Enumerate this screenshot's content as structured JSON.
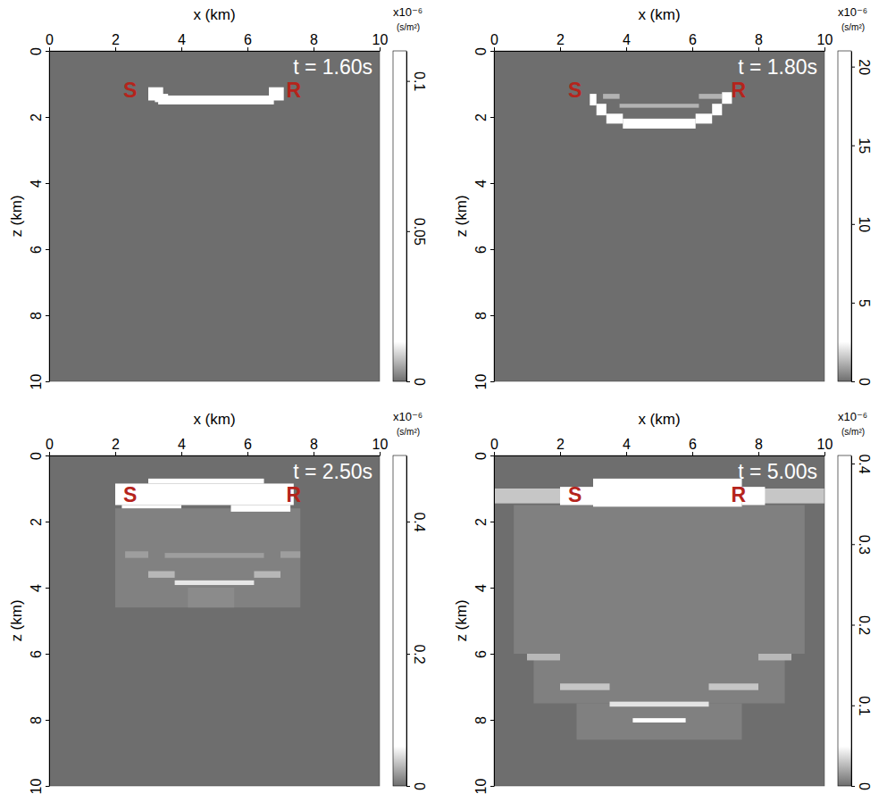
{
  "chart_data": [
    {
      "type": "heatmap",
      "title": "t = 1.60s",
      "x_label": "x (km)",
      "y_label": "z (km)",
      "xlim": [
        0,
        10
      ],
      "ylim": [
        0,
        10
      ],
      "xticks": [
        0,
        2,
        4,
        6,
        8,
        10
      ],
      "yticks": [
        0,
        2,
        4,
        6,
        8,
        10
      ],
      "annotations": [
        {
          "text": "S",
          "x": 2.45,
          "y": 1.2,
          "color": "#b5241c"
        },
        {
          "text": "R",
          "x": 7.4,
          "y": 1.2,
          "color": "#b5241c"
        }
      ],
      "cells": [
        [
          3.3,
          6.8,
          1.35,
          1.62,
          0.1
        ],
        [
          3.0,
          3.45,
          1.1,
          1.5,
          0.1
        ],
        [
          6.65,
          7.1,
          1.1,
          1.5,
          0.1
        ],
        [
          3.2,
          3.6,
          1.3,
          1.55,
          0.1
        ]
      ],
      "colorbar": {
        "range": [
          0,
          0.11
        ],
        "ticks": [
          0,
          0.05,
          0.1
        ],
        "label": "x10⁻⁶",
        "unit": "(s/m²)"
      }
    },
    {
      "type": "heatmap",
      "title": "t = 1.80s",
      "x_label": "x (km)",
      "y_label": "z (km)",
      "xlim": [
        0,
        10
      ],
      "ylim": [
        0,
        10
      ],
      "xticks": [
        0,
        2,
        4,
        6,
        8,
        10
      ],
      "yticks": [
        0,
        2,
        4,
        6,
        8,
        10
      ],
      "annotations": [
        {
          "text": "S",
          "x": 2.45,
          "y": 1.2,
          "color": "#b5241c"
        },
        {
          "text": "R",
          "x": 7.4,
          "y": 1.2,
          "color": "#b5241c"
        }
      ],
      "cells": [
        [
          3.3,
          3.8,
          1.3,
          1.45,
          1.2
        ],
        [
          3.8,
          6.2,
          1.6,
          1.72,
          1.2
        ],
        [
          6.2,
          6.9,
          1.3,
          1.45,
          1.2
        ],
        [
          3.9,
          6.1,
          2.05,
          2.35,
          20
        ],
        [
          3.4,
          3.9,
          1.9,
          2.2,
          20
        ],
        [
          6.1,
          6.6,
          1.9,
          2.2,
          20
        ],
        [
          3.1,
          3.4,
          1.6,
          1.95,
          20
        ],
        [
          6.6,
          6.9,
          1.6,
          1.95,
          20
        ],
        [
          2.9,
          3.1,
          1.3,
          1.65,
          20
        ],
        [
          6.9,
          7.2,
          1.25,
          1.6,
          20
        ]
      ],
      "colorbar": {
        "range": [
          0,
          21
        ],
        "ticks": [
          0,
          5,
          10,
          15,
          20
        ],
        "label": "x10⁻⁶",
        "unit": "(s/m²)"
      }
    },
    {
      "type": "heatmap",
      "title": "t = 2.50s",
      "x_label": "x (km)",
      "y_label": "z (km)",
      "xlim": [
        0,
        10
      ],
      "ylim": [
        0,
        10
      ],
      "xticks": [
        0,
        2,
        4,
        6,
        8,
        10
      ],
      "yticks": [
        0,
        2,
        4,
        6,
        8,
        10
      ],
      "annotations": [
        {
          "text": "S",
          "x": 2.45,
          "y": 1.2,
          "color": "#b5241c"
        },
        {
          "text": "R",
          "x": 7.4,
          "y": 1.2,
          "color": "#b5241c"
        }
      ],
      "cells": [
        [
          2.0,
          7.6,
          1.6,
          4.6,
          0.008
        ],
        [
          4.2,
          5.6,
          4.0,
          4.6,
          0.012
        ],
        [
          2.3,
          3.0,
          2.9,
          3.1,
          0.02
        ],
        [
          7.0,
          7.6,
          2.9,
          3.1,
          0.02
        ],
        [
          3.5,
          6.5,
          2.95,
          3.1,
          0.02
        ],
        [
          3.0,
          3.8,
          3.5,
          3.7,
          0.03
        ],
        [
          6.2,
          7.0,
          3.5,
          3.7,
          0.03
        ],
        [
          3.8,
          6.2,
          3.78,
          3.92,
          0.05
        ],
        [
          2.0,
          7.4,
          0.85,
          1.5,
          0.5
        ],
        [
          3.0,
          6.5,
          0.7,
          0.85,
          0.45
        ],
        [
          5.5,
          7.3,
          1.5,
          1.7,
          0.45
        ],
        [
          2.2,
          4.0,
          1.5,
          1.6,
          0.4
        ]
      ],
      "colorbar": {
        "range": [
          0,
          0.5
        ],
        "ticks": [
          0,
          0.2,
          0.4
        ],
        "label": "x10⁻⁶",
        "unit": "(s/m²)"
      }
    },
    {
      "type": "heatmap",
      "title": "t = 5.00s",
      "x_label": "x (km)",
      "y_label": "z (km)",
      "xlim": [
        0,
        10
      ],
      "ylim": [
        0,
        10
      ],
      "xticks": [
        0,
        2,
        4,
        6,
        8,
        10
      ],
      "yticks": [
        0,
        2,
        4,
        6,
        8,
        10
      ],
      "annotations": [
        {
          "text": "S",
          "x": 2.45,
          "y": 1.2,
          "color": "#b5241c"
        },
        {
          "text": "R",
          "x": 7.4,
          "y": 1.2,
          "color": "#b5241c"
        }
      ],
      "cells": [
        [
          0.6,
          9.4,
          1.5,
          6.0,
          0.006
        ],
        [
          1.2,
          8.8,
          6.0,
          7.5,
          0.006
        ],
        [
          2.5,
          7.5,
          7.5,
          8.6,
          0.006
        ],
        [
          1.0,
          2.0,
          6.0,
          6.2,
          0.025
        ],
        [
          8.0,
          9.0,
          6.0,
          6.2,
          0.025
        ],
        [
          2.0,
          3.5,
          6.9,
          7.1,
          0.03
        ],
        [
          6.5,
          8.0,
          6.9,
          7.1,
          0.03
        ],
        [
          3.5,
          6.5,
          7.45,
          7.6,
          0.04
        ],
        [
          4.2,
          5.8,
          7.95,
          8.08,
          0.05
        ],
        [
          0.0,
          10.0,
          1.0,
          1.45,
          0.03
        ],
        [
          2.0,
          3.0,
          0.95,
          1.5,
          0.3
        ],
        [
          7.5,
          8.2,
          0.95,
          1.5,
          0.3
        ],
        [
          3.0,
          7.5,
          0.7,
          1.55,
          0.4
        ]
      ],
      "colorbar": {
        "range": [
          0,
          0.41
        ],
        "ticks": [
          0,
          0.1,
          0.2,
          0.3,
          0.4
        ],
        "label": "x10⁻⁶",
        "unit": "(s/m²)"
      }
    }
  ]
}
